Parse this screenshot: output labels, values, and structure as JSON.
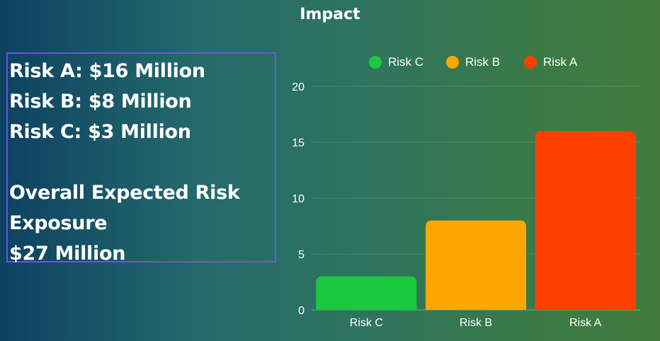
{
  "title": "Impact",
  "summary": {
    "lines": [
      "Risk A: $16 Million",
      "Risk B: $8 Million",
      "Risk C: $3 Million",
      "",
      "Overall Expected Risk",
      "Exposure",
      "$27 Million"
    ]
  },
  "chart_data": {
    "type": "bar",
    "title": "Impact",
    "categories": [
      "Risk C",
      "Risk B",
      "Risk A"
    ],
    "values": [
      3,
      8,
      16
    ],
    "colors": [
      "#1bc83f",
      "#ffa600",
      "#ff4000"
    ],
    "yticks": [
      "0",
      "5",
      "10",
      "15",
      "20"
    ],
    "ylim": [
      0,
      20
    ],
    "legend": [
      "Risk C",
      "Risk B",
      "Risk A"
    ],
    "legend_position": "top",
    "grid": true
  }
}
